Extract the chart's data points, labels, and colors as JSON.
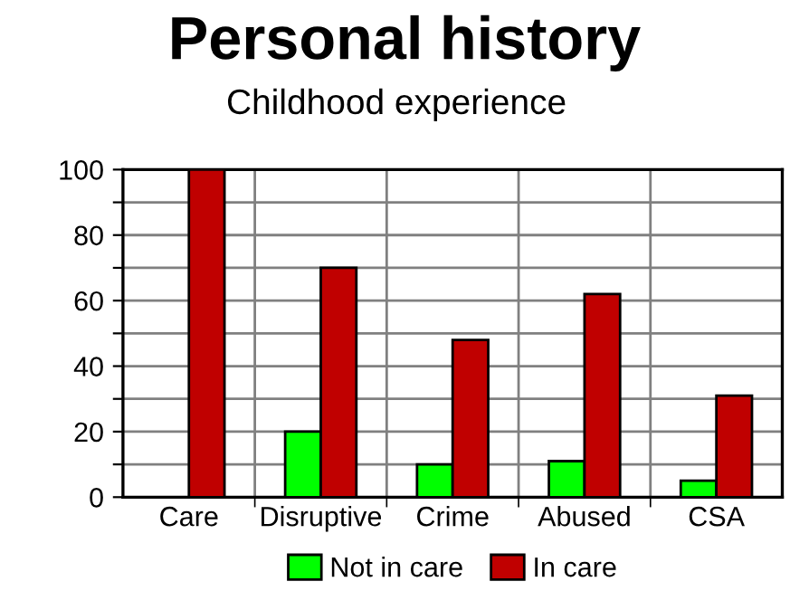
{
  "chart_data": {
    "type": "bar",
    "title": "Personal history",
    "subtitle": "Childhood experience",
    "categories": [
      "Care",
      "Disruptive",
      "Crime",
      "Abused",
      "CSA"
    ],
    "series": [
      {
        "name": "Not in care",
        "color": "#00ff00",
        "values": [
          null,
          20,
          10,
          11,
          5
        ]
      },
      {
        "name": "In care",
        "color": "#c00000",
        "values": [
          100,
          70,
          48,
          62,
          31
        ]
      }
    ],
    "ylim": [
      0,
      100
    ],
    "yticks": [
      0,
      {
        "value": 10,
        "label": null
      },
      20,
      {
        "value": 30,
        "label": null
      },
      40,
      {
        "value": 50,
        "label": null
      },
      60,
      {
        "value": 70,
        "label": null
      },
      80,
      {
        "value": 90,
        "label": null
      },
      100
    ],
    "grid": true,
    "legend": "bottom"
  }
}
